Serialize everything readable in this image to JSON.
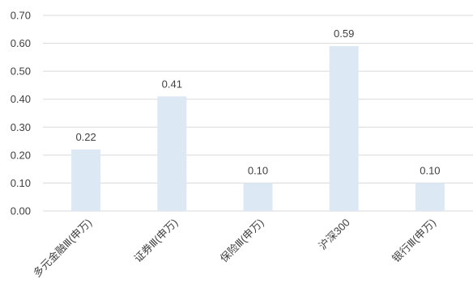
{
  "chart_data": {
    "type": "bar",
    "title": "",
    "xlabel": "",
    "ylabel": "",
    "categories": [
      "多元金融Ⅲ(申万)",
      "证券Ⅲ(申万)",
      "保险Ⅲ(申万)",
      "沪深300",
      "银行Ⅲ(申万)"
    ],
    "values": [
      0.22,
      0.41,
      0.1,
      0.59,
      0.1
    ],
    "data_labels": [
      "0.22",
      "0.41",
      "0.10",
      "0.59",
      "0.10"
    ],
    "ylim": [
      0,
      0.7
    ],
    "yticks": [
      "0.00",
      "0.10",
      "0.20",
      "0.30",
      "0.40",
      "0.50",
      "0.60",
      "0.70"
    ],
    "grid": true,
    "legend": "none",
    "colors": {
      "bar": "#dde8f5",
      "grid": "#d9d9d9",
      "text": "#404040"
    }
  }
}
